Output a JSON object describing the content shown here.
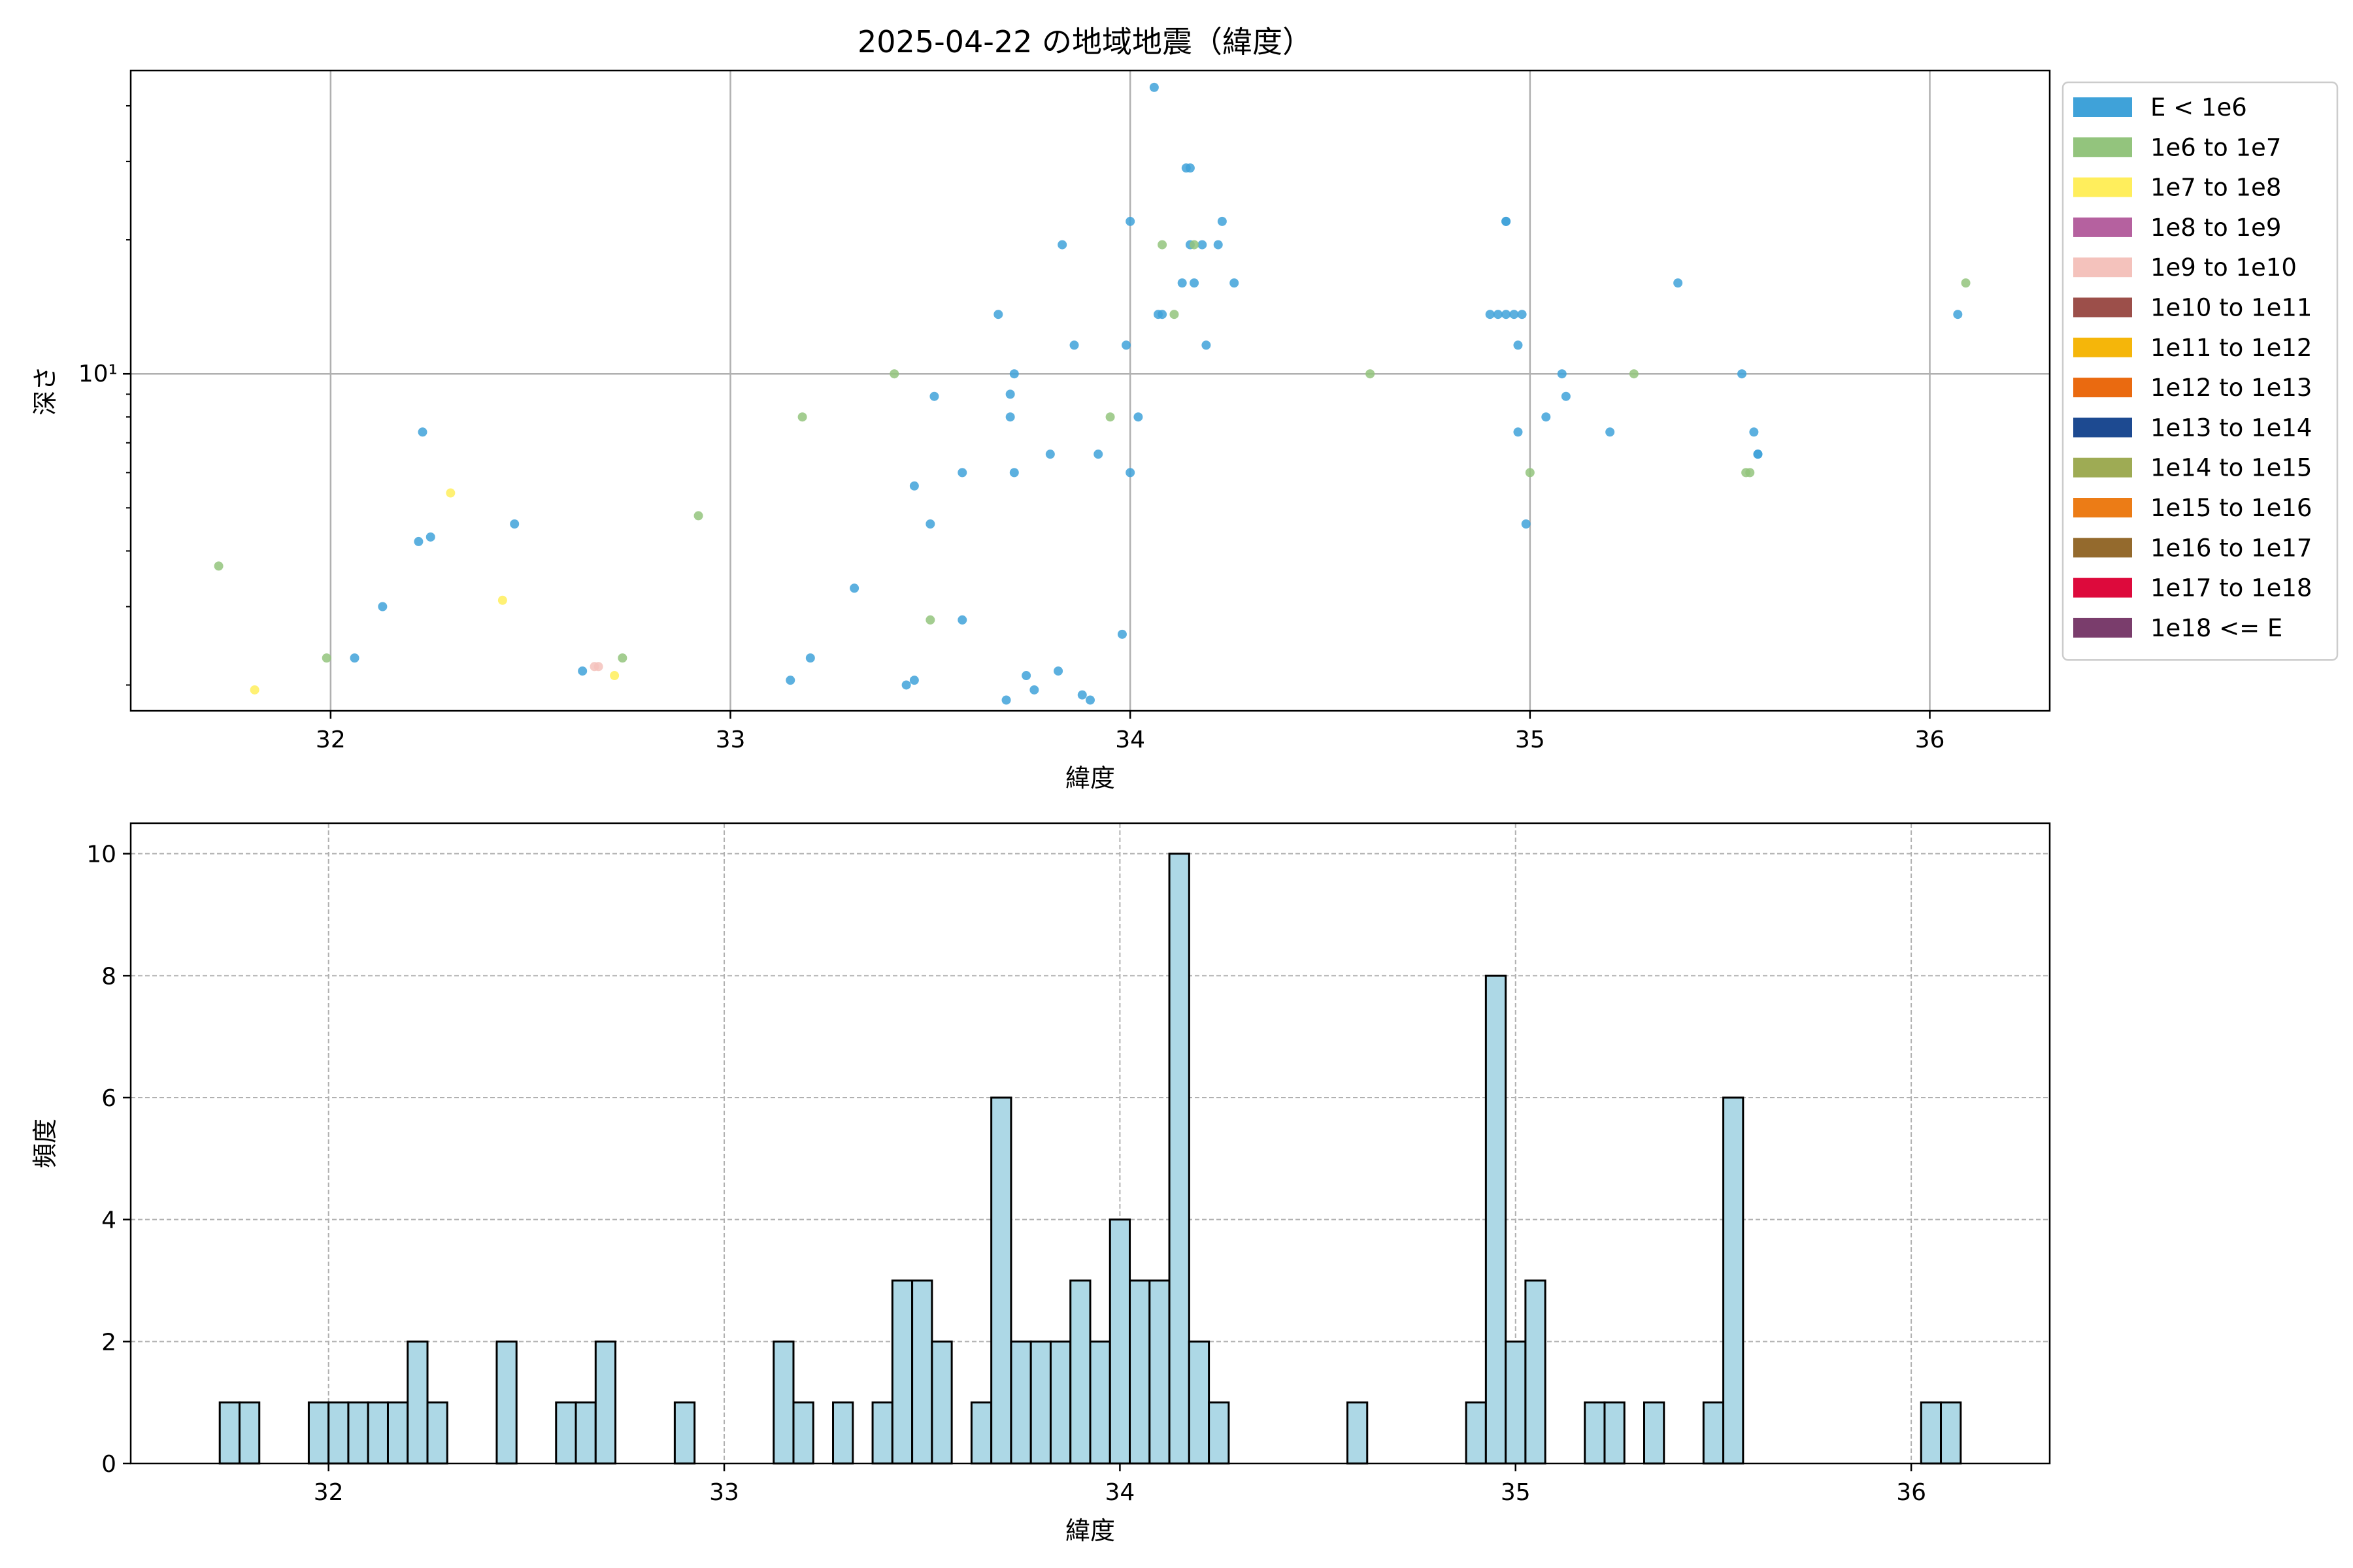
{
  "title": "2025-04-22 の地域地震（緯度）",
  "chart_data": [
    {
      "type": "scatter",
      "xlabel": "緯度",
      "ylabel": "深さ",
      "xlim": [
        31.5,
        36.3
      ],
      "ylim": [
        1.75,
        48
      ],
      "yscale": "log",
      "xticks": [
        32,
        33,
        34,
        35,
        36
      ],
      "xtick_labels": [
        "32",
        "33",
        "34",
        "35",
        "36"
      ],
      "yticks": [
        10
      ],
      "ytick_labels": [
        "10¹"
      ],
      "grid": true,
      "legend_position": "outside-right",
      "legend": [
        {
          "label": "E < 1e6",
          "color": "#3fa2d9"
        },
        {
          "label": "1e6 to 1e7",
          "color": "#93c47d"
        },
        {
          "label": "1e7 to 1e8",
          "color": "#ffee5c"
        },
        {
          "label": "1e8 to 1e9",
          "color": "#b5619f"
        },
        {
          "label": "1e9 to 1e10",
          "color": "#f4c2bc"
        },
        {
          "label": "1e10 to 1e11",
          "color": "#9c4f4a"
        },
        {
          "label": "1e11 to 1e12",
          "color": "#f5b60a"
        },
        {
          "label": "1e12 to 1e13",
          "color": "#ea6a10"
        },
        {
          "label": "1e13 to 1e14",
          "color": "#1d4a91"
        },
        {
          "label": "1e14 to 1e15",
          "color": "#9eab54"
        },
        {
          "label": "1e15 to 1e16",
          "color": "#ec7c16"
        },
        {
          "label": "1e16 to 1e17",
          "color": "#946a2d"
        },
        {
          "label": "1e17 to 1e18",
          "color": "#dd0a3c"
        },
        {
          "label": "1e18 <= E",
          "color": "#7a3d6c"
        }
      ],
      "series": [
        {
          "name": "E < 1e6",
          "color": "#3fa2d9",
          "points": [
            [
              32.06,
              2.3
            ],
            [
              32.13,
              3.0
            ],
            [
              32.22,
              4.2
            ],
            [
              32.25,
              4.3
            ],
            [
              32.23,
              7.4
            ],
            [
              32.46,
              4.6
            ],
            [
              32.63,
              2.15
            ],
            [
              33.15,
              2.05
            ],
            [
              33.2,
              2.3
            ],
            [
              33.31,
              3.3
            ],
            [
              33.44,
              2.0
            ],
            [
              33.46,
              2.05
            ],
            [
              33.46,
              5.6
            ],
            [
              33.5,
              4.6
            ],
            [
              33.51,
              8.9
            ],
            [
              33.58,
              6.0
            ],
            [
              33.58,
              2.8
            ],
            [
              33.67,
              13.6
            ],
            [
              33.69,
              1.85
            ],
            [
              33.7,
              8.0
            ],
            [
              33.7,
              9.0
            ],
            [
              33.71,
              10.0
            ],
            [
              33.71,
              6.0
            ],
            [
              33.74,
              2.1
            ],
            [
              33.76,
              1.95
            ],
            [
              33.8,
              6.6
            ],
            [
              33.82,
              2.15
            ],
            [
              33.83,
              19.5
            ],
            [
              33.86,
              11.6
            ],
            [
              33.88,
              1.9
            ],
            [
              33.9,
              1.85
            ],
            [
              33.92,
              6.6
            ],
            [
              33.98,
              2.6
            ],
            [
              33.99,
              11.6
            ],
            [
              34.0,
              22.0
            ],
            [
              34.0,
              6.0
            ],
            [
              34.02,
              8.0
            ],
            [
              34.06,
              44.0
            ],
            [
              34.07,
              13.6
            ],
            [
              34.08,
              13.6
            ],
            [
              34.13,
              16.0
            ],
            [
              34.14,
              29.0
            ],
            [
              34.15,
              29.0
            ],
            [
              34.15,
              19.5
            ],
            [
              34.16,
              16.0
            ],
            [
              34.18,
              19.5
            ],
            [
              34.19,
              11.6
            ],
            [
              34.22,
              19.5
            ],
            [
              34.23,
              22.0
            ],
            [
              34.26,
              16.0
            ],
            [
              34.9,
              13.6
            ],
            [
              34.92,
              13.6
            ],
            [
              34.94,
              22.0
            ],
            [
              34.94,
              22.0
            ],
            [
              34.94,
              13.6
            ],
            [
              34.96,
              13.6
            ],
            [
              34.97,
              7.4
            ],
            [
              34.97,
              11.6
            ],
            [
              34.98,
              13.6
            ],
            [
              34.99,
              4.6
            ],
            [
              35.04,
              8.0
            ],
            [
              35.08,
              10.0
            ],
            [
              35.09,
              8.9
            ],
            [
              35.2,
              7.4
            ],
            [
              35.37,
              16.0
            ],
            [
              35.53,
              10.0
            ],
            [
              35.56,
              7.4
            ],
            [
              35.57,
              6.6
            ],
            [
              35.57,
              6.6
            ],
            [
              36.07,
              13.6
            ]
          ]
        },
        {
          "name": "1e6 to 1e7",
          "color": "#93c47d",
          "points": [
            [
              31.72,
              3.7
            ],
            [
              31.99,
              2.3
            ],
            [
              32.73,
              2.3
            ],
            [
              32.92,
              4.8
            ],
            [
              33.18,
              8.0
            ],
            [
              33.41,
              10.0
            ],
            [
              33.5,
              2.8
            ],
            [
              33.95,
              8.0
            ],
            [
              34.08,
              19.5
            ],
            [
              34.11,
              13.6
            ],
            [
              34.16,
              19.5
            ],
            [
              34.6,
              10.0
            ],
            [
              35.0,
              6.0
            ],
            [
              35.26,
              10.0
            ],
            [
              35.54,
              6.0
            ],
            [
              35.55,
              6.0
            ],
            [
              36.09,
              16.0
            ]
          ]
        },
        {
          "name": "1e7 to 1e8",
          "color": "#ffee5c",
          "points": [
            [
              31.81,
              1.95
            ],
            [
              32.3,
              5.4
            ],
            [
              32.43,
              3.1
            ],
            [
              32.71,
              2.1
            ]
          ]
        },
        {
          "name": "1e9 to 1e10",
          "color": "#f4c2bc",
          "points": [
            [
              32.66,
              2.2
            ],
            [
              32.67,
              2.2
            ]
          ]
        }
      ]
    },
    {
      "type": "bar",
      "xlabel": "緯度",
      "ylabel": "頻度",
      "xlim": [
        31.5,
        36.35
      ],
      "ylim": [
        0,
        10.5
      ],
      "xticks": [
        32,
        33,
        34,
        35,
        36
      ],
      "xtick_labels": [
        "32",
        "33",
        "34",
        "35",
        "36"
      ],
      "yticks": [
        0,
        2,
        4,
        6,
        8,
        10
      ],
      "ytick_labels": [
        "0",
        "2",
        "4",
        "6",
        "8",
        "10"
      ],
      "grid": true,
      "bin_width": 0.05,
      "bar_color": "#add8e6",
      "edge_color": "#000000",
      "bins": [
        [
          31.75,
          1
        ],
        [
          31.8,
          1
        ],
        [
          31.975,
          1
        ],
        [
          32.025,
          1
        ],
        [
          32.075,
          1
        ],
        [
          32.125,
          1
        ],
        [
          32.175,
          1
        ],
        [
          32.225,
          2
        ],
        [
          32.275,
          1
        ],
        [
          32.45,
          2
        ],
        [
          32.6,
          1
        ],
        [
          32.65,
          1
        ],
        [
          32.7,
          2
        ],
        [
          32.9,
          1
        ],
        [
          33.15,
          2
        ],
        [
          33.2,
          1
        ],
        [
          33.3,
          1
        ],
        [
          33.4,
          1
        ],
        [
          33.45,
          3
        ],
        [
          33.5,
          3
        ],
        [
          33.55,
          2
        ],
        [
          33.65,
          1
        ],
        [
          33.7,
          6
        ],
        [
          33.75,
          2
        ],
        [
          33.8,
          2
        ],
        [
          33.85,
          2
        ],
        [
          33.9,
          3
        ],
        [
          33.95,
          2
        ],
        [
          34.0,
          4
        ],
        [
          34.05,
          3
        ],
        [
          34.1,
          3
        ],
        [
          34.15,
          10
        ],
        [
          34.2,
          2
        ],
        [
          34.25,
          1
        ],
        [
          34.6,
          1
        ],
        [
          34.9,
          1
        ],
        [
          34.95,
          8
        ],
        [
          35.0,
          2
        ],
        [
          35.05,
          3
        ],
        [
          35.2,
          1
        ],
        [
          35.25,
          1
        ],
        [
          35.35,
          1
        ],
        [
          35.5,
          1
        ],
        [
          35.55,
          6
        ],
        [
          36.05,
          1
        ],
        [
          36.1,
          1
        ]
      ]
    }
  ]
}
